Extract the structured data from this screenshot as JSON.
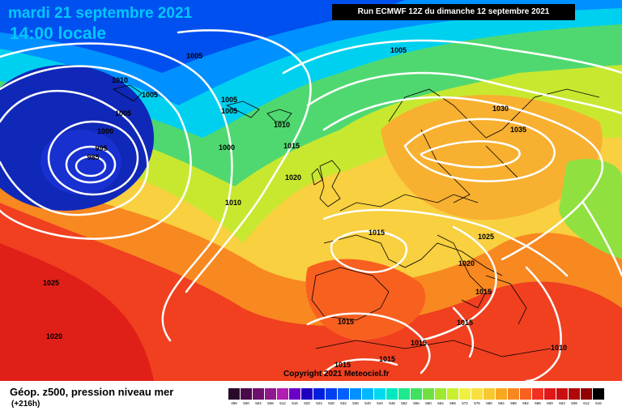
{
  "header": {
    "date": "mardi 21 septembre 2021",
    "local_time": "14:00 locale",
    "run": "Run ECMWF 12Z du dimanche 12 septembre 2021"
  },
  "isobar_labels": [
    "1010",
    "1005",
    "1005",
    "1005",
    "1005",
    "1005",
    "1000",
    "995",
    "985",
    "1000",
    "1010",
    "1015",
    "1020",
    "1010",
    "1005",
    "1030",
    "1035",
    "1015",
    "1025",
    "1020",
    "1015",
    "1025",
    "1020",
    "1015",
    "1015",
    "1015",
    "1015",
    "1010",
    "1015"
  ],
  "copyright": "Copyright 2021 Meteociel.fr",
  "legend": {
    "title": "Géop. z500, pression niveau mer",
    "subtitle": "(+216h)",
    "scale": [
      {
        "label": "496",
        "color": "#2a0a2a"
      },
      {
        "label": "500",
        "color": "#4a0a4a"
      },
      {
        "label": "504",
        "color": "#6e106e"
      },
      {
        "label": "508",
        "color": "#8e1a8e"
      },
      {
        "label": "512",
        "color": "#b020b0"
      },
      {
        "label": "516",
        "color": "#6a00c8"
      },
      {
        "label": "520",
        "color": "#2000c0"
      },
      {
        "label": "524",
        "color": "#0020e0"
      },
      {
        "label": "528",
        "color": "#0040f0"
      },
      {
        "label": "532",
        "color": "#0060ff"
      },
      {
        "label": "536",
        "color": "#0090ff"
      },
      {
        "label": "540",
        "color": "#00b8ff"
      },
      {
        "label": "544",
        "color": "#00d8f0"
      },
      {
        "label": "548",
        "color": "#00e8c0"
      },
      {
        "label": "552",
        "color": "#20e890"
      },
      {
        "label": "556",
        "color": "#40e060"
      },
      {
        "label": "560",
        "color": "#70e040"
      },
      {
        "label": "564",
        "color": "#a0e830"
      },
      {
        "label": "568",
        "color": "#c8f030"
      },
      {
        "label": "572",
        "color": "#f0f040"
      },
      {
        "label": "576",
        "color": "#f8e040"
      },
      {
        "label": "580",
        "color": "#f8c830"
      },
      {
        "label": "584",
        "color": "#f8a820"
      },
      {
        "label": "588",
        "color": "#f88820"
      },
      {
        "label": "592",
        "color": "#f86020"
      },
      {
        "label": "596",
        "color": "#f03020"
      },
      {
        "label": "600",
        "color": "#e01818"
      },
      {
        "label": "604",
        "color": "#c81010"
      },
      {
        "label": "608",
        "color": "#b00808"
      },
      {
        "label": "612",
        "color": "#900000"
      },
      {
        "label": "616",
        "color": "#000000"
      }
    ]
  }
}
